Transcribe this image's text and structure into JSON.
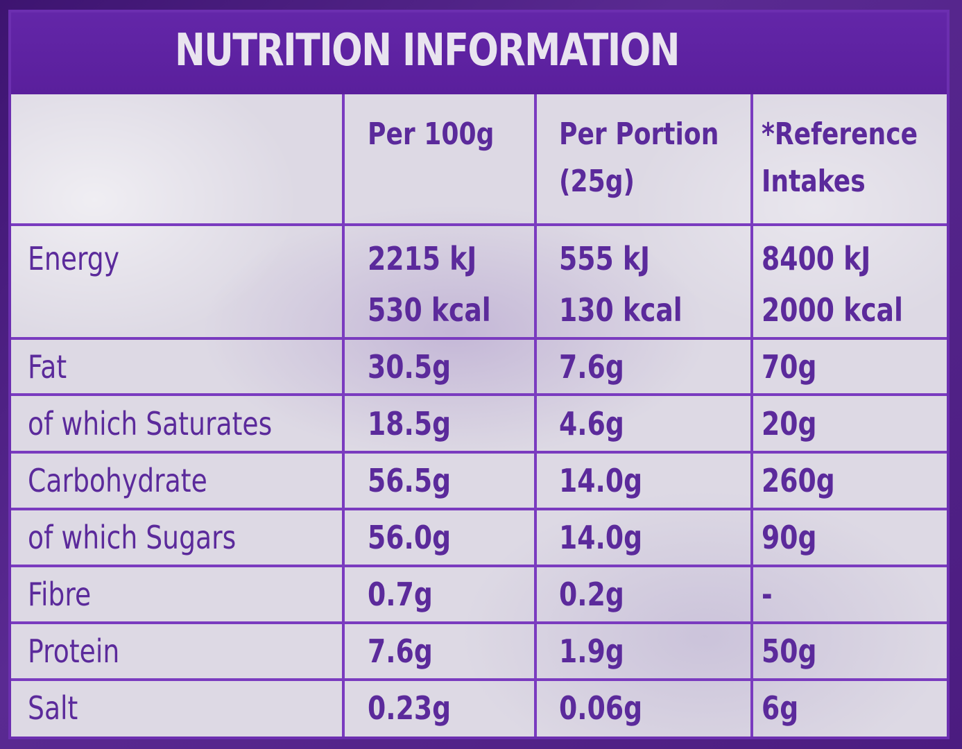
{
  "title": "NUTRITION INFORMATION",
  "columns": {
    "per100g": "Per 100g",
    "per_portion_line1": "Per Portion",
    "per_portion_line2": "(25g)",
    "reference_line1": "*Reference",
    "reference_line2": "Intakes"
  },
  "rows": [
    {
      "label": "Energy",
      "per100g": "2215 kJ",
      "per100g_2": "530 kcal",
      "portion": "555 kJ",
      "portion_2": "130 kcal",
      "ri": "8400 kJ",
      "ri_2": "2000 kcal"
    },
    {
      "label": "Fat",
      "per100g": "30.5g",
      "portion": "7.6g",
      "ri": "70g"
    },
    {
      "label": "of which Saturates",
      "per100g": "18.5g",
      "portion": "4.6g",
      "ri": "20g"
    },
    {
      "label": "Carbohydrate",
      "per100g": "56.5g",
      "portion": "14.0g",
      "ri": "260g"
    },
    {
      "label": "of which Sugars",
      "per100g": "56.0g",
      "portion": "14.0g",
      "ri": "90g"
    },
    {
      "label": "Fibre",
      "per100g": "0.7g",
      "portion": "0.2g",
      "ri": "-"
    },
    {
      "label": "Protein",
      "per100g": "7.6g",
      "portion": "1.9g",
      "ri": "50g"
    },
    {
      "label": "Salt",
      "per100g": "0.23g",
      "portion": "0.06g",
      "ri": "6g"
    }
  ]
}
